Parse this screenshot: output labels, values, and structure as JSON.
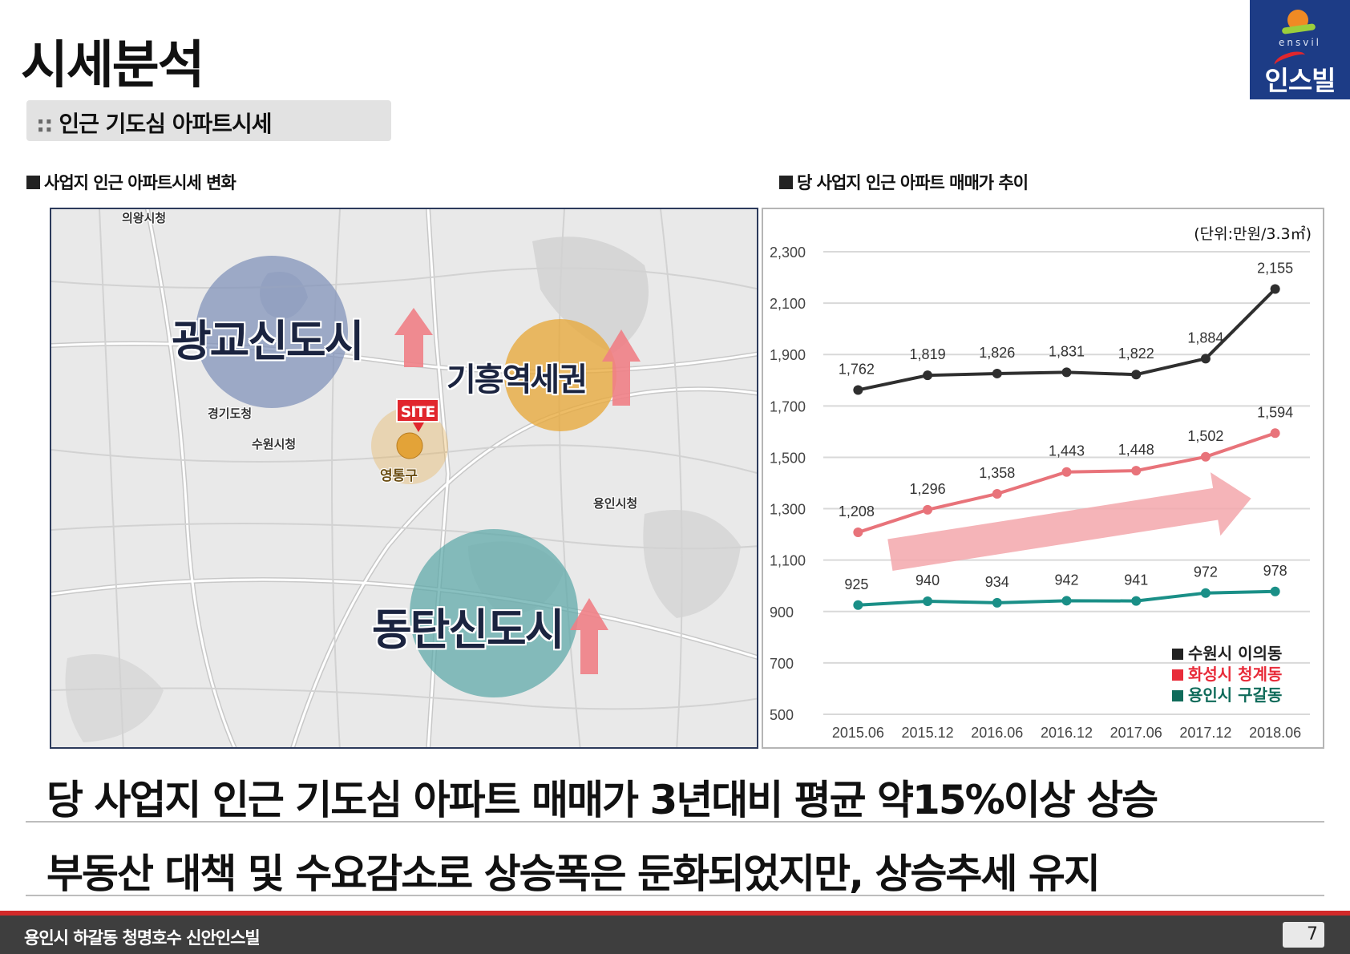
{
  "header": {
    "title": "시세분석",
    "subtitle_marker": "::",
    "subtitle": "인근 기도심 아파트시세"
  },
  "logo": {
    "brand_en": "ensvil",
    "brand_ko": "인스빌",
    "colors": {
      "background": "#1d3c86",
      "sun": "#f08a24",
      "leaf": "#9bcf3c",
      "swoosh": "#e1262d"
    }
  },
  "sections": {
    "left_label": "사업지 인근 아파트시세 변화",
    "right_label": "당 사업지 인근 아파트 매매가 추이"
  },
  "map": {
    "overlays": {
      "gwanggyo": "광교신도시",
      "giheung": "기흥역세권",
      "dongtan": "동탄신도시"
    },
    "site_tag": "SITE",
    "site_district": "영통구",
    "labels": {
      "uiwang": "의왕시청",
      "gyeonggi": "경기도청",
      "suwon": "수원시청",
      "yongin": "용인시청"
    },
    "colors": {
      "gwanggyo": "#7e90b8",
      "giheung": "#e8a93b",
      "dongtan": "#5ba8a8",
      "site": "#e8b25a",
      "arrow": "#ef8086"
    }
  },
  "chart_data": {
    "type": "line",
    "unit_label": "(단위:만원/3.3㎡)",
    "categories": [
      "2015.06",
      "2015.12",
      "2016.06",
      "2016.12",
      "2017.06",
      "2017.12",
      "2018.06"
    ],
    "ylim": [
      500,
      2300
    ],
    "yticks": [
      2300,
      2100,
      1900,
      1700,
      1500,
      1300,
      1100,
      900,
      700,
      500
    ],
    "grid": true,
    "legend_position": "bottom-right",
    "series": [
      {
        "name": "수원시 이의동",
        "color": "#2f2f2f",
        "values": [
          1762,
          1819,
          1826,
          1831,
          1822,
          1884,
          2155
        ]
      },
      {
        "name": "화성시 청계동",
        "color": "#e8737a",
        "values": [
          1208,
          1296,
          1358,
          1443,
          1448,
          1502,
          1594
        ]
      },
      {
        "name": "용인시 구갈동",
        "color": "#1a8f87",
        "values": [
          925,
          940,
          934,
          942,
          941,
          972,
          978
        ]
      }
    ],
    "legend_colors": [
      "#222222",
      "#e82c3a",
      "#0f6b5a"
    ],
    "trend_arrow_color": "#f3a7ab"
  },
  "headlines": [
    "당 사업지 인근 기도심 아파트 매매가 3년대비 평균 약15%이상 상승",
    "부동산 대책 및 수요감소로 상승폭은 둔화되었지만, 상승추세 유지"
  ],
  "footer": {
    "text": "용인시 하갈동 청명호수 신안인스빌",
    "page_number": "7"
  }
}
